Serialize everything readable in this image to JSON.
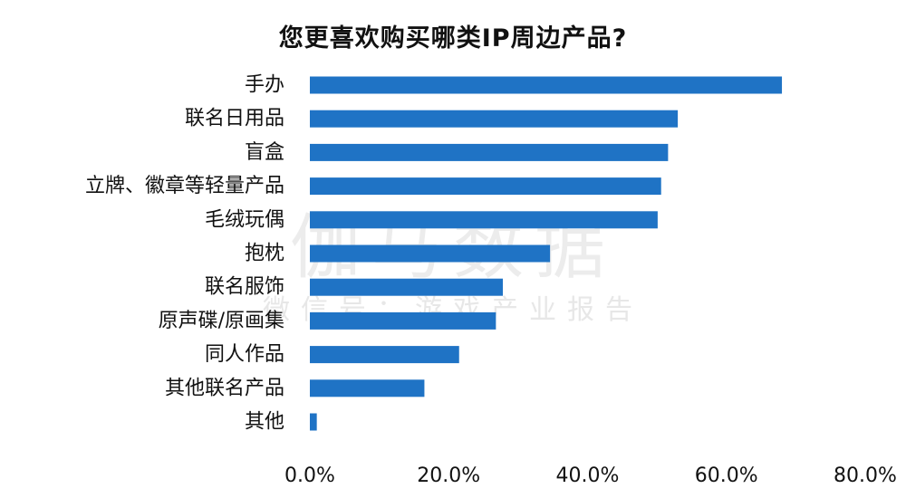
{
  "chart_data": {
    "type": "bar",
    "orientation": "horizontal",
    "title": "您更喜欢购买哪类IP周边产品?",
    "categories": [
      "手办",
      "联名日用品",
      "盲盒",
      "立牌、徽章等轻量产品",
      "毛绒玩偶",
      "抱枕",
      "联名服饰",
      "原声碟/原画集",
      "同人作品",
      "其他联名产品",
      "其他"
    ],
    "values": [
      68.0,
      53.0,
      51.6,
      50.6,
      50.1,
      34.6,
      27.8,
      26.8,
      21.5,
      16.5,
      1.0
    ],
    "xlim": [
      0,
      80
    ],
    "ticks": [
      0,
      20,
      40,
      60,
      80
    ],
    "tick_labels": [
      "0.0%",
      "20.0%",
      "40.0%",
      "60.0%",
      "80.0%"
    ],
    "color": "#1f73c5",
    "grid": false,
    "legend": "none"
  },
  "watermark": {
    "main": "伽马数据",
    "sub": "微信号：游戏产业报告"
  }
}
